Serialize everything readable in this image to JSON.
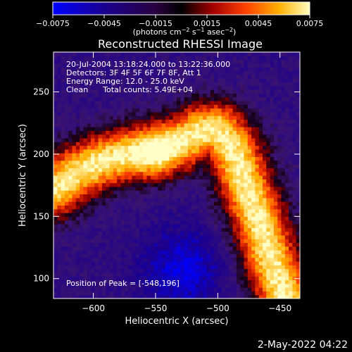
{
  "colorbar": {
    "ticks": [
      "−0.0075",
      "−0.0045",
      "−0.0015",
      "0.0015",
      "0.0045",
      "0.0075"
    ],
    "units_prefix": "(photons cm",
    "units_exp1": "−2",
    "units_mid1": " s",
    "units_exp2": "−1",
    "units_mid2": " asec",
    "units_exp3": "−2",
    "units_suffix": ")"
  },
  "title": "Reconstructed RHESSI Image",
  "info": {
    "time_range": "20-Jul-2004 13:18:24.000 to 13:22:36.000",
    "detectors": "Detectors: 3F 4F 5F 6F 7F 8F, Att 1",
    "energy": "Energy Range: 12.0 - 25.0 keV",
    "clean": "Clean      Total counts: 5.49E+04",
    "peak": "Position of Peak = [-548,196]"
  },
  "footer_date": "2-May-2022 04:22",
  "chart_data": {
    "type": "heatmap",
    "title": "Reconstructed RHESSI Image",
    "xlabel": "Heliocentric X (arcsec)",
    "ylabel": "Heliocentric Y (arcsec)",
    "xlim": [
      -632,
      -434
    ],
    "ylim": [
      84,
      282
    ],
    "xticks": [
      -600,
      -550,
      -500,
      -450
    ],
    "xtick_labels": [
      "−600",
      "−550",
      "−500",
      "−450"
    ],
    "yticks": [
      100,
      150,
      200,
      250
    ],
    "ytick_labels": [
      "100",
      "150",
      "200",
      "250"
    ],
    "colorbar_range": [
      -0.0075,
      0.0075
    ],
    "colormap": "red-temperature",
    "peak": [
      -548,
      196
    ],
    "arch_ridge": [
      [
        -632,
        172
      ],
      [
        -612,
        186
      ],
      [
        -592,
        195
      ],
      [
        -572,
        200
      ],
      [
        -548,
        205
      ],
      [
        -530,
        210
      ],
      [
        -515,
        218
      ],
      [
        -500,
        220
      ],
      [
        -488,
        205
      ],
      [
        -478,
        178
      ],
      [
        -468,
        150
      ],
      [
        -456,
        112
      ],
      [
        -446,
        86
      ]
    ]
  }
}
